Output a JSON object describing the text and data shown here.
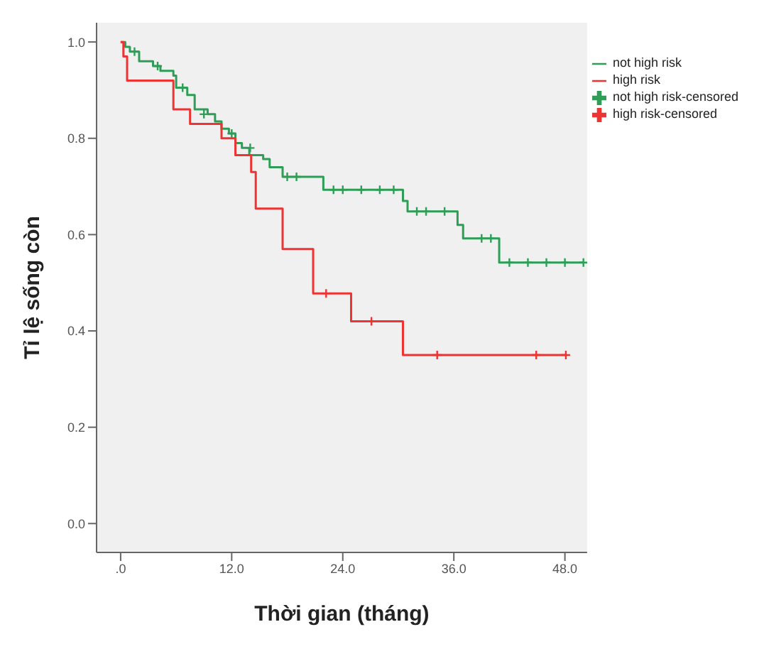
{
  "chart_data": {
    "type": "step",
    "xlabel": "Thời gian (tháng)",
    "ylabel": "Tỉ lệ sống còn",
    "xlim": [
      -2.6,
      50.4
    ],
    "ylim": [
      -0.06,
      1.04
    ],
    "xticks": [
      {
        "value": 0,
        "label": ".0"
      },
      {
        "value": 12,
        "label": "12.0"
      },
      {
        "value": 24,
        "label": "24.0"
      },
      {
        "value": 36,
        "label": "36.0"
      },
      {
        "value": 48,
        "label": "48.0"
      }
    ],
    "yticks": [
      {
        "value": 0,
        "label": "0.0"
      },
      {
        "value": 0.2,
        "label": "0.2"
      },
      {
        "value": 0.4,
        "label": "0.4"
      },
      {
        "value": 0.6,
        "label": "0.6"
      },
      {
        "value": 0.8,
        "label": "0.8"
      },
      {
        "value": 1,
        "label": "1.0"
      }
    ],
    "grid": false,
    "legend": "right",
    "series": [
      {
        "name": "not high risk",
        "color": "#2e9e57",
        "marker": "none",
        "x": [
          0,
          0.5,
          1,
          2,
          3.5,
          4.3,
          5.7,
          6,
          7.2,
          8,
          9.4,
          10.2,
          10.9,
          11.7,
          12.4,
          13.1,
          13.9,
          15.4,
          16.1,
          17.5,
          21.9,
          30.5,
          31,
          36.4,
          37,
          40.9,
          50
        ],
        "values": [
          1,
          0.99,
          0.98,
          0.96,
          0.95,
          0.94,
          0.93,
          0.905,
          0.89,
          0.86,
          0.85,
          0.835,
          0.82,
          0.81,
          0.79,
          0.78,
          0.765,
          0.757,
          0.74,
          0.72,
          0.693,
          0.67,
          0.648,
          0.62,
          0.592,
          0.542,
          0.542
        ]
      },
      {
        "name": "high risk",
        "color": "#ee3333",
        "marker": "none",
        "x": [
          0,
          0.3,
          0.7,
          5.7,
          7.5,
          10.9,
          12.4,
          14.1,
          14.6,
          17.5,
          20.8,
          24.9,
          30.5,
          48.2
        ],
        "values": [
          1,
          0.97,
          0.92,
          0.86,
          0.83,
          0.8,
          0.765,
          0.73,
          0.654,
          0.57,
          0.478,
          0.42,
          0.35,
          0.35
        ]
      },
      {
        "name": "not high risk-censored",
        "type": "scatter",
        "color": "#2e9e57",
        "marker": "cross",
        "x": [
          1.5,
          4,
          6.7,
          9,
          12,
          14,
          18,
          19,
          23,
          24,
          26,
          28,
          29.5,
          32,
          33,
          35,
          39,
          40,
          42,
          44,
          46,
          48,
          50
        ],
        "values": [
          0.98,
          0.95,
          0.905,
          0.85,
          0.81,
          0.78,
          0.72,
          0.72,
          0.693,
          0.693,
          0.693,
          0.693,
          0.693,
          0.648,
          0.648,
          0.648,
          0.592,
          0.592,
          0.542,
          0.542,
          0.542,
          0.542,
          0.542
        ]
      },
      {
        "name": "high risk-censored",
        "type": "scatter",
        "color": "#ee3333",
        "marker": "cross",
        "x": [
          22.2,
          27.1,
          34.2,
          44.9,
          48.1
        ],
        "values": [
          0.478,
          0.42,
          0.35,
          0.35,
          0.35
        ]
      }
    ]
  }
}
